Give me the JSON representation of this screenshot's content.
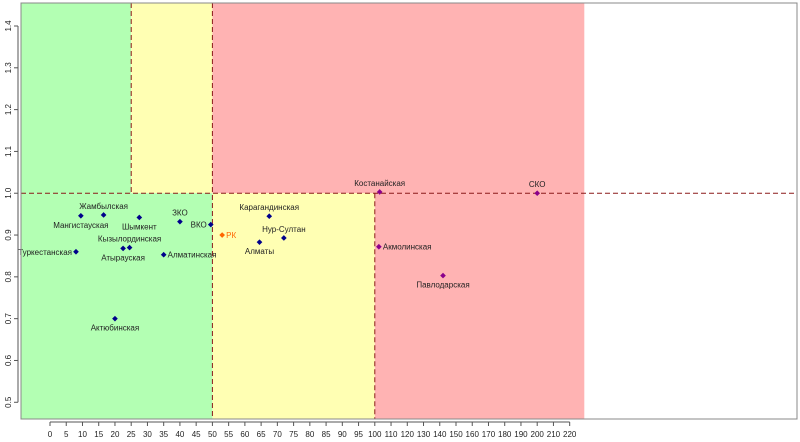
{
  "chart_data": {
    "type": "scatter",
    "x_axis_breaks": [
      0,
      5,
      10,
      15,
      20,
      25,
      30,
      35,
      40,
      45,
      50,
      55,
      60,
      65,
      70,
      75,
      80,
      85,
      90,
      95,
      100,
      110,
      120,
      130,
      140,
      150,
      160,
      170,
      180,
      190,
      200,
      210,
      220
    ],
    "xlim": [
      -9,
      229
    ],
    "ylim": [
      0.46,
      1.455
    ],
    "y_ticks": [
      "0.5",
      "0.6",
      "0.7",
      "0.8",
      "0.9",
      "1.0",
      "1.1",
      "1.2",
      "1.3",
      "1.4"
    ],
    "grid": false,
    "zones": [
      {
        "x": [
          -9,
          25
        ],
        "y": [
          1.0,
          1.455
        ],
        "color": "#b3ffb3"
      },
      {
        "x": [
          25,
          50
        ],
        "y": [
          1.0,
          1.455
        ],
        "color": "#ffffb3"
      },
      {
        "x": [
          50,
          229
        ],
        "y": [
          1.0,
          1.455
        ],
        "color": "#ffb3b3"
      },
      {
        "x": [
          -9,
          50
        ],
        "y": [
          0.46,
          1.0
        ],
        "color": "#b3ffb3"
      },
      {
        "x": [
          50,
          100
        ],
        "y": [
          0.46,
          1.0
        ],
        "color": "#ffffb3"
      },
      {
        "x": [
          100,
          229
        ],
        "y": [
          0.46,
          1.0
        ],
        "color": "#ffb3b3"
      }
    ],
    "reference_lines": [
      {
        "orientation": "horizontal",
        "value": 1.0,
        "color": "#8b1a1a"
      },
      {
        "orientation": "vertical",
        "value": 25,
        "from": 1.0,
        "to": 1.455,
        "color": "#8b1a1a"
      },
      {
        "orientation": "vertical",
        "value": 50,
        "from": 0.46,
        "to": 1.455,
        "color": "#8b1a1a"
      },
      {
        "orientation": "vertical",
        "value": 100,
        "from": 0.46,
        "to": 1.0,
        "color": "#8b1a1a"
      }
    ],
    "points": [
      {
        "label": "Жамбылская",
        "x": 16.5,
        "y": 0.948,
        "color": "#00008b",
        "label_pos": "above"
      },
      {
        "label": "Мангистауская",
        "x": 9.5,
        "y": 0.946,
        "color": "#00008b",
        "label_pos": "below"
      },
      {
        "label": "Шымкент",
        "x": 27.5,
        "y": 0.942,
        "color": "#00008b",
        "label_pos": "below"
      },
      {
        "label": "ЗКО",
        "x": 40,
        "y": 0.932,
        "color": "#00008b",
        "label_pos": "above"
      },
      {
        "label": "ВКО",
        "x": 49.5,
        "y": 0.925,
        "color": "#00008b",
        "label_pos": "left"
      },
      {
        "label": "РК",
        "x": 53,
        "y": 0.9,
        "color": "#ff6600",
        "label_pos": "right"
      },
      {
        "label": "Кызылординская",
        "x": 24.5,
        "y": 0.87,
        "color": "#00008b",
        "label_pos": "above"
      },
      {
        "label": "Атырауская",
        "x": 22.5,
        "y": 0.868,
        "color": "#00008b",
        "label_pos": "below"
      },
      {
        "label": "Алматинская",
        "x": 35,
        "y": 0.853,
        "color": "#00008b",
        "label_pos": "right"
      },
      {
        "label": "Туркестанская",
        "x": 8,
        "y": 0.86,
        "color": "#00008b",
        "label_pos": "left"
      },
      {
        "label": "Актюбинская",
        "x": 20,
        "y": 0.7,
        "color": "#00008b",
        "label_pos": "below"
      },
      {
        "label": "Карагандинская",
        "x": 67.5,
        "y": 0.945,
        "color": "#00008b",
        "label_pos": "above"
      },
      {
        "label": "Нур-Султан",
        "x": 72,
        "y": 0.893,
        "color": "#00008b",
        "label_pos": "above"
      },
      {
        "label": "Алматы",
        "x": 64.5,
        "y": 0.883,
        "color": "#00008b",
        "label_pos": "below"
      },
      {
        "label": "Костанайская",
        "x": 103,
        "y": 1.003,
        "color": "#8b008b",
        "label_pos": "above"
      },
      {
        "label": "Акмолинская",
        "x": 102.5,
        "y": 0.872,
        "color": "#8b008b",
        "label_pos": "right"
      },
      {
        "label": "Павлодарская",
        "x": 142,
        "y": 0.803,
        "color": "#8b008b",
        "label_pos": "below"
      },
      {
        "label": "СКО",
        "x": 200,
        "y": 1.0,
        "color": "#8b008b",
        "label_pos": "above"
      }
    ]
  }
}
